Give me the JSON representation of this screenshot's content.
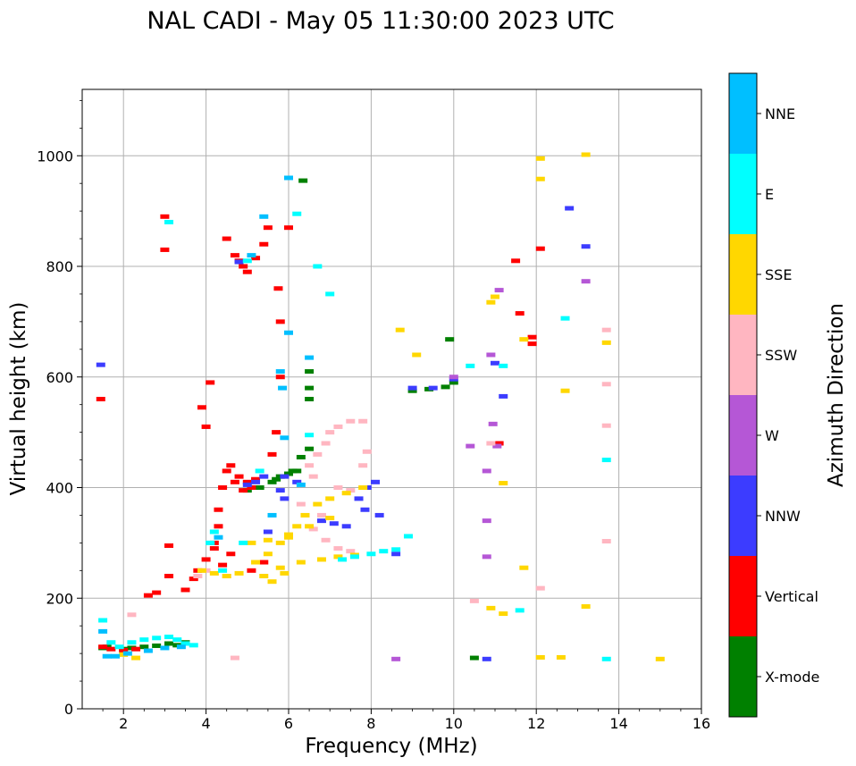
{
  "chart_data": {
    "type": "scatter",
    "title": "NAL CADI - May 05 11:30:00 2023 UTC",
    "xlabel": "Frequency (MHz)",
    "ylabel": "Virtual height (km)",
    "xlim": [
      1,
      16
    ],
    "ylim": [
      0,
      1120
    ],
    "xticks": [
      2,
      4,
      6,
      8,
      10,
      12,
      14,
      16
    ],
    "yticks": [
      0,
      200,
      400,
      600,
      800,
      1000
    ],
    "grid": true,
    "colorbar": {
      "label": "Azimuth Direction",
      "categories": [
        {
          "name": "X-mode",
          "color": "#008000"
        },
        {
          "name": "Vertical",
          "color": "#ff0000"
        },
        {
          "name": "NNW",
          "color": "#3c3cff"
        },
        {
          "name": "W",
          "color": "#b557d6"
        },
        {
          "name": "SSW",
          "color": "#ffb6c1"
        },
        {
          "name": "SSE",
          "color": "#ffd700"
        },
        {
          "name": "E",
          "color": "#00ffff"
        },
        {
          "name": "NNE",
          "color": "#00bfff"
        }
      ]
    },
    "series": [
      {
        "name": "X-mode",
        "points": [
          [
            1.5,
            110
          ],
          [
            1.6,
            112
          ],
          [
            2.0,
            108
          ],
          [
            2.2,
            110
          ],
          [
            2.5,
            112
          ],
          [
            2.8,
            114
          ],
          [
            3.1,
            118
          ],
          [
            3.3,
            115
          ],
          [
            3.5,
            120
          ],
          [
            5.0,
            395
          ],
          [
            5.3,
            400
          ],
          [
            5.6,
            410
          ],
          [
            5.8,
            420
          ],
          [
            6.0,
            425
          ],
          [
            6.2,
            430
          ],
          [
            6.3,
            455
          ],
          [
            6.5,
            470
          ],
          [
            6.5,
            560
          ],
          [
            6.5,
            580
          ],
          [
            6.5,
            610
          ],
          [
            6.35,
            955
          ],
          [
            6.1,
            430
          ],
          [
            5.7,
            415
          ],
          [
            9.0,
            575
          ],
          [
            9.4,
            578
          ],
          [
            9.8,
            582
          ],
          [
            10.0,
            590
          ],
          [
            9.9,
            668
          ],
          [
            10.5,
            92
          ]
        ]
      },
      {
        "name": "Vertical",
        "points": [
          [
            1.45,
            560
          ],
          [
            1.5,
            112
          ],
          [
            1.7,
            108
          ],
          [
            2.0,
            106
          ],
          [
            2.3,
            108
          ],
          [
            2.6,
            205
          ],
          [
            2.8,
            210
          ],
          [
            3.1,
            240
          ],
          [
            3.1,
            295
          ],
          [
            3.0,
            830
          ],
          [
            3.0,
            890
          ],
          [
            3.5,
            215
          ],
          [
            3.8,
            250
          ],
          [
            4.0,
            270
          ],
          [
            3.9,
            545
          ],
          [
            4.1,
            590
          ],
          [
            4.0,
            510
          ],
          [
            4.2,
            300
          ],
          [
            4.3,
            330
          ],
          [
            4.3,
            360
          ],
          [
            4.4,
            400
          ],
          [
            4.5,
            430
          ],
          [
            4.6,
            440
          ],
          [
            4.7,
            410
          ],
          [
            4.8,
            420
          ],
          [
            4.9,
            395
          ],
          [
            5.0,
            410
          ],
          [
            5.1,
            400
          ],
          [
            5.2,
            415
          ],
          [
            4.5,
            850
          ],
          [
            4.7,
            820
          ],
          [
            4.8,
            810
          ],
          [
            4.9,
            800
          ],
          [
            5.0,
            790
          ],
          [
            5.2,
            815
          ],
          [
            5.4,
            840
          ],
          [
            5.5,
            870
          ],
          [
            5.6,
            460
          ],
          [
            5.7,
            500
          ],
          [
            5.8,
            600
          ],
          [
            5.8,
            700
          ],
          [
            5.75,
            760
          ],
          [
            6.0,
            870
          ],
          [
            11.1,
            480
          ],
          [
            11.5,
            810
          ],
          [
            11.6,
            715
          ],
          [
            11.9,
            660
          ],
          [
            12.1,
            832
          ],
          [
            11.9,
            672
          ],
          [
            4.4,
            260
          ],
          [
            4.2,
            290
          ],
          [
            3.7,
            235
          ],
          [
            4.6,
            280
          ],
          [
            5.1,
            250
          ],
          [
            5.4,
            265
          ]
        ]
      },
      {
        "name": "NNW",
        "points": [
          [
            1.45,
            622
          ],
          [
            4.8,
            808
          ],
          [
            5.0,
            405
          ],
          [
            5.2,
            410
          ],
          [
            5.4,
            420
          ],
          [
            5.8,
            395
          ],
          [
            5.9,
            380
          ],
          [
            6.2,
            410
          ],
          [
            6.8,
            340
          ],
          [
            7.1,
            335
          ],
          [
            7.4,
            330
          ],
          [
            7.7,
            380
          ],
          [
            7.9,
            400
          ],
          [
            7.85,
            360
          ],
          [
            8.1,
            410
          ],
          [
            8.2,
            350
          ],
          [
            8.6,
            280
          ],
          [
            9.0,
            580
          ],
          [
            9.5,
            580
          ],
          [
            10.0,
            596
          ],
          [
            10.8,
            90
          ],
          [
            11.0,
            625
          ],
          [
            11.2,
            565
          ],
          [
            12.8,
            905
          ],
          [
            13.2,
            836
          ],
          [
            5.5,
            320
          ],
          [
            5.9,
            420
          ]
        ]
      },
      {
        "name": "W",
        "points": [
          [
            8.6,
            90
          ],
          [
            10.0,
            600
          ],
          [
            10.4,
            475
          ],
          [
            10.8,
            430
          ],
          [
            10.8,
            340
          ],
          [
            10.8,
            275
          ],
          [
            10.9,
            640
          ],
          [
            11.1,
            757
          ],
          [
            13.2,
            773
          ],
          [
            11.05,
            475
          ],
          [
            10.95,
            515
          ]
        ]
      },
      {
        "name": "SSW",
        "points": [
          [
            3.8,
            240
          ],
          [
            4.0,
            250
          ],
          [
            4.5,
            240
          ],
          [
            4.7,
            92
          ],
          [
            6.5,
            440
          ],
          [
            6.6,
            420
          ],
          [
            6.7,
            460
          ],
          [
            6.9,
            480
          ],
          [
            7.0,
            500
          ],
          [
            7.2,
            510
          ],
          [
            7.5,
            520
          ],
          [
            7.8,
            520
          ],
          [
            7.2,
            400
          ],
          [
            7.5,
            395
          ],
          [
            7.8,
            440
          ],
          [
            7.9,
            465
          ],
          [
            6.6,
            325
          ],
          [
            6.9,
            305
          ],
          [
            7.2,
            290
          ],
          [
            7.5,
            285
          ],
          [
            10.5,
            195
          ],
          [
            10.9,
            480
          ],
          [
            12.1,
            218
          ],
          [
            13.7,
            685
          ],
          [
            13.7,
            587
          ],
          [
            13.7,
            512
          ],
          [
            13.7,
            303
          ],
          [
            2.2,
            170
          ],
          [
            6.3,
            370
          ],
          [
            6.8,
            350
          ]
        ]
      },
      {
        "name": "SSE",
        "points": [
          [
            2.0,
            98
          ],
          [
            2.3,
            92
          ],
          [
            3.9,
            250
          ],
          [
            4.2,
            245
          ],
          [
            4.5,
            240
          ],
          [
            4.8,
            245
          ],
          [
            5.2,
            265
          ],
          [
            5.5,
            280
          ],
          [
            5.8,
            300
          ],
          [
            6.0,
            310
          ],
          [
            6.2,
            330
          ],
          [
            6.4,
            350
          ],
          [
            6.7,
            370
          ],
          [
            7.0,
            380
          ],
          [
            7.4,
            390
          ],
          [
            7.8,
            400
          ],
          [
            5.4,
            240
          ],
          [
            5.8,
            255
          ],
          [
            6.3,
            265
          ],
          [
            6.8,
            270
          ],
          [
            7.2,
            275
          ],
          [
            7.6,
            278
          ],
          [
            5.1,
            300
          ],
          [
            5.5,
            305
          ],
          [
            6.0,
            315
          ],
          [
            6.5,
            330
          ],
          [
            7.0,
            345
          ],
          [
            5.6,
            230
          ],
          [
            5.9,
            245
          ],
          [
            8.7,
            685
          ],
          [
            9.1,
            640
          ],
          [
            10.9,
            735
          ],
          [
            11.0,
            745
          ],
          [
            10.9,
            182
          ],
          [
            11.2,
            408
          ],
          [
            11.2,
            172
          ],
          [
            11.7,
            668
          ],
          [
            11.7,
            255
          ],
          [
            12.1,
            93
          ],
          [
            12.6,
            93
          ],
          [
            12.7,
            575
          ],
          [
            13.2,
            1002
          ],
          [
            13.2,
            185
          ],
          [
            12.1,
            995
          ],
          [
            12.1,
            958
          ],
          [
            13.7,
            662
          ],
          [
            15.0,
            90
          ]
        ]
      },
      {
        "name": "E",
        "points": [
          [
            1.5,
            160
          ],
          [
            1.7,
            120
          ],
          [
            1.9,
            112
          ],
          [
            2.2,
            120
          ],
          [
            2.5,
            125
          ],
          [
            2.8,
            128
          ],
          [
            3.1,
            130
          ],
          [
            3.3,
            125
          ],
          [
            3.5,
            118
          ],
          [
            3.7,
            115
          ],
          [
            3.1,
            880
          ],
          [
            4.1,
            300
          ],
          [
            4.2,
            320
          ],
          [
            4.4,
            250
          ],
          [
            5.0,
            810
          ],
          [
            5.3,
            430
          ],
          [
            6.2,
            895
          ],
          [
            6.7,
            800
          ],
          [
            7.0,
            750
          ],
          [
            7.3,
            270
          ],
          [
            7.6,
            275
          ],
          [
            8.0,
            280
          ],
          [
            8.3,
            285
          ],
          [
            8.6,
            288
          ],
          [
            8.9,
            312
          ],
          [
            10.4,
            620
          ],
          [
            11.2,
            620
          ],
          [
            11.6,
            178
          ],
          [
            12.7,
            706
          ],
          [
            13.7,
            450
          ],
          [
            13.7,
            90
          ],
          [
            6.5,
            495
          ],
          [
            4.9,
            300
          ]
        ]
      },
      {
        "name": "NNE",
        "points": [
          [
            1.5,
            140
          ],
          [
            1.6,
            95
          ],
          [
            1.8,
            95
          ],
          [
            2.1,
            100
          ],
          [
            2.6,
            105
          ],
          [
            3.0,
            110
          ],
          [
            3.4,
            112
          ],
          [
            5.1,
            820
          ],
          [
            5.4,
            890
          ],
          [
            5.8,
            610
          ],
          [
            5.85,
            580
          ],
          [
            5.9,
            490
          ],
          [
            6.0,
            680
          ],
          [
            6.5,
            635
          ],
          [
            5.6,
            350
          ],
          [
            4.3,
            310
          ],
          [
            6.0,
            960
          ],
          [
            6.3,
            405
          ]
        ]
      }
    ]
  }
}
